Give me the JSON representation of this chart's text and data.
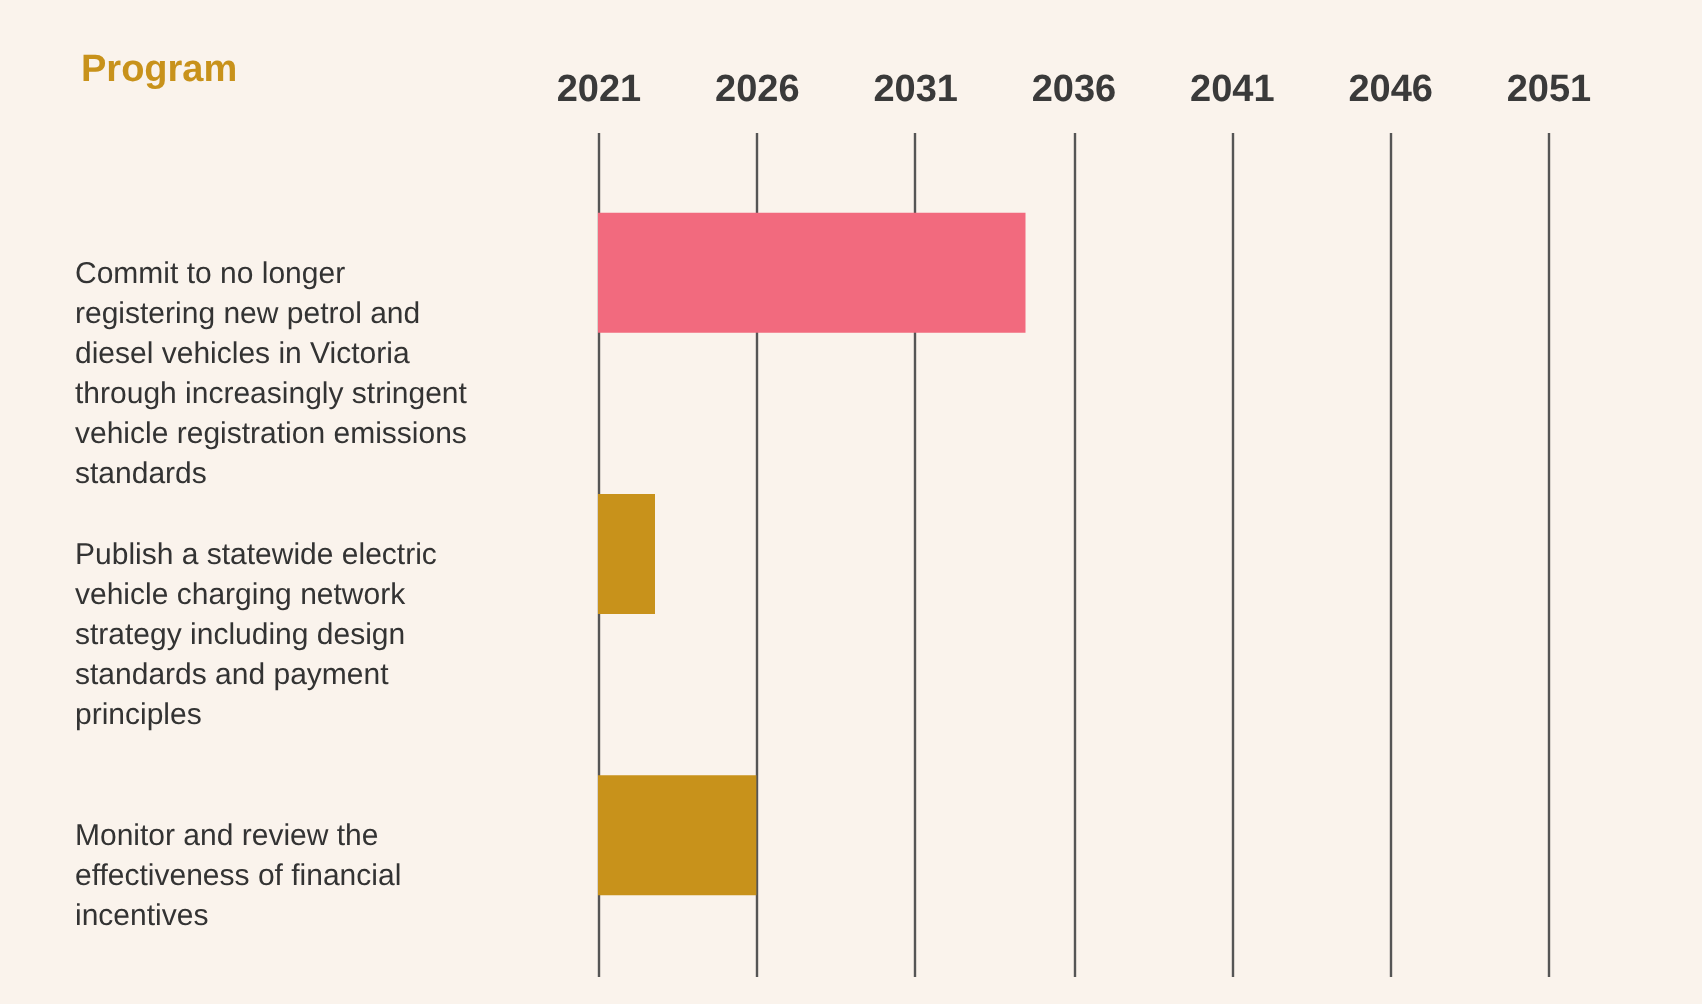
{
  "chart_data": {
    "type": "bar",
    "orientation": "horizontal",
    "ylabel": "Program",
    "categories": [
      "Commit to no longer registering new petrol and diesel vehicles in Victoria through increasingly stringent vehicle registration emissions standards",
      "Publish a statewide electric vehicle charging network strategy including design standards and payment principles",
      "Monitor and review the effectiveness of financial incentives"
    ],
    "values": [
      13.5,
      1.8,
      5
    ],
    "base": [
      2021,
      2021,
      2021
    ],
    "colors": [
      "#f26a7e",
      "#c8921b",
      "#c8921b"
    ],
    "xlim": [
      2021,
      2051
    ],
    "xticks": [
      2021,
      2026,
      2031,
      2036,
      2041,
      2046,
      2051
    ],
    "grid": "x"
  }
}
